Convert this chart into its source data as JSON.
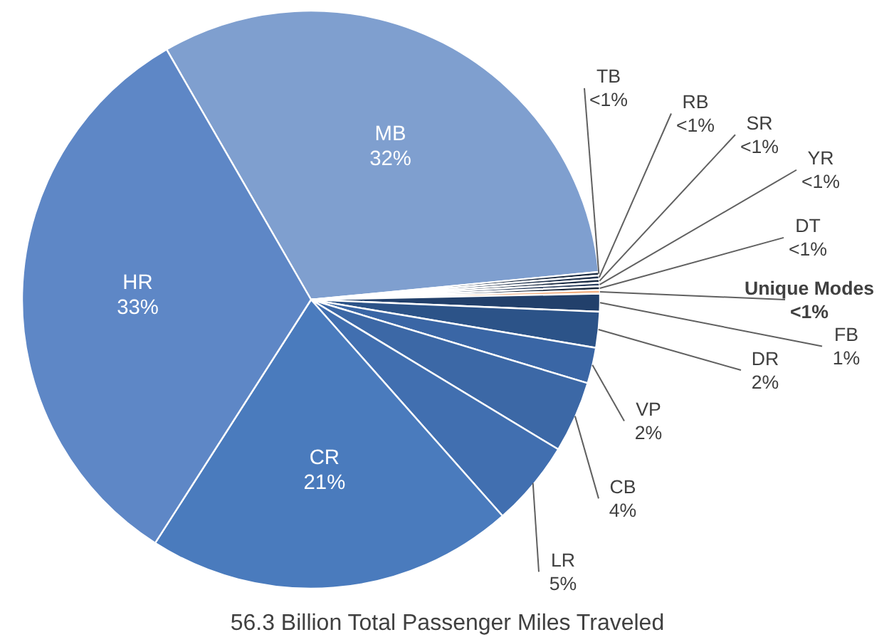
{
  "chart_data": {
    "type": "pie",
    "title": "56.3 Billion Total Passenger Miles Traveled",
    "categories": [
      "MB",
      "TB",
      "RB",
      "SR",
      "YR",
      "DT",
      "Unique Modes",
      "FB",
      "DR",
      "VP",
      "CB",
      "LR",
      "CR",
      "HR"
    ],
    "values": [
      31.8,
      0.2,
      0.2,
      0.2,
      0.2,
      0.2,
      0.2,
      1,
      2,
      2,
      4,
      4.8,
      20.6,
      32.6
    ],
    "value_labels": [
      "32%",
      "<1%",
      "<1%",
      "<1%",
      "<1%",
      "<1%",
      "<1%",
      "1%",
      "2%",
      "2%",
      "4%",
      "5%",
      "21%",
      "33%"
    ],
    "colors": [
      "#7f9fcf",
      "#1a2a40",
      "#22344f",
      "#1c2d45",
      "#2b3f5f",
      "#18263a",
      "#f4b183",
      "#22406b",
      "#2c5388",
      "#3a66a5",
      "#3c68a6",
      "#416fb0",
      "#4a7bbd",
      "#5e87c6"
    ]
  }
}
